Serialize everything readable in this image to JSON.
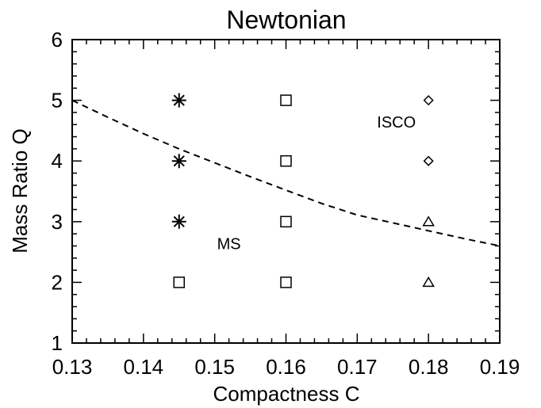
{
  "chart_data": {
    "type": "scatter",
    "title": "Newtonian",
    "xlabel": "Compactness C",
    "ylabel": "Mass Ratio Q",
    "xlim": [
      0.13,
      0.19
    ],
    "ylim": [
      1,
      6
    ],
    "xticks": [
      "0.13",
      "0.14",
      "0.15",
      "0.16",
      "0.17",
      "0.18",
      "0.19"
    ],
    "yticks": [
      "1",
      "2",
      "3",
      "4",
      "5",
      "6"
    ],
    "grid": false,
    "markers": {
      "asterisk": [
        [
          0.145,
          5
        ],
        [
          0.145,
          4
        ],
        [
          0.145,
          3
        ]
      ],
      "square": [
        [
          0.145,
          2
        ],
        [
          0.16,
          5
        ],
        [
          0.16,
          4
        ],
        [
          0.16,
          3
        ],
        [
          0.16,
          2
        ]
      ],
      "diamond": [
        [
          0.18,
          5
        ],
        [
          0.18,
          4
        ]
      ],
      "triangle": [
        [
          0.18,
          3
        ],
        [
          0.18,
          2
        ]
      ]
    },
    "boundary": {
      "style": "dashed",
      "x": [
        0.13,
        0.135,
        0.14,
        0.145,
        0.15,
        0.155,
        0.16,
        0.165,
        0.17,
        0.175,
        0.18,
        0.185,
        0.19
      ],
      "y": [
        5.0,
        4.72,
        4.45,
        4.2,
        3.97,
        3.74,
        3.52,
        3.3,
        3.11,
        2.98,
        2.85,
        2.72,
        2.6
      ]
    },
    "annotations": [
      {
        "text": "ISCO",
        "x": 0.1755,
        "y": 4.55
      },
      {
        "text": "MS",
        "x": 0.152,
        "y": 2.55
      }
    ]
  }
}
